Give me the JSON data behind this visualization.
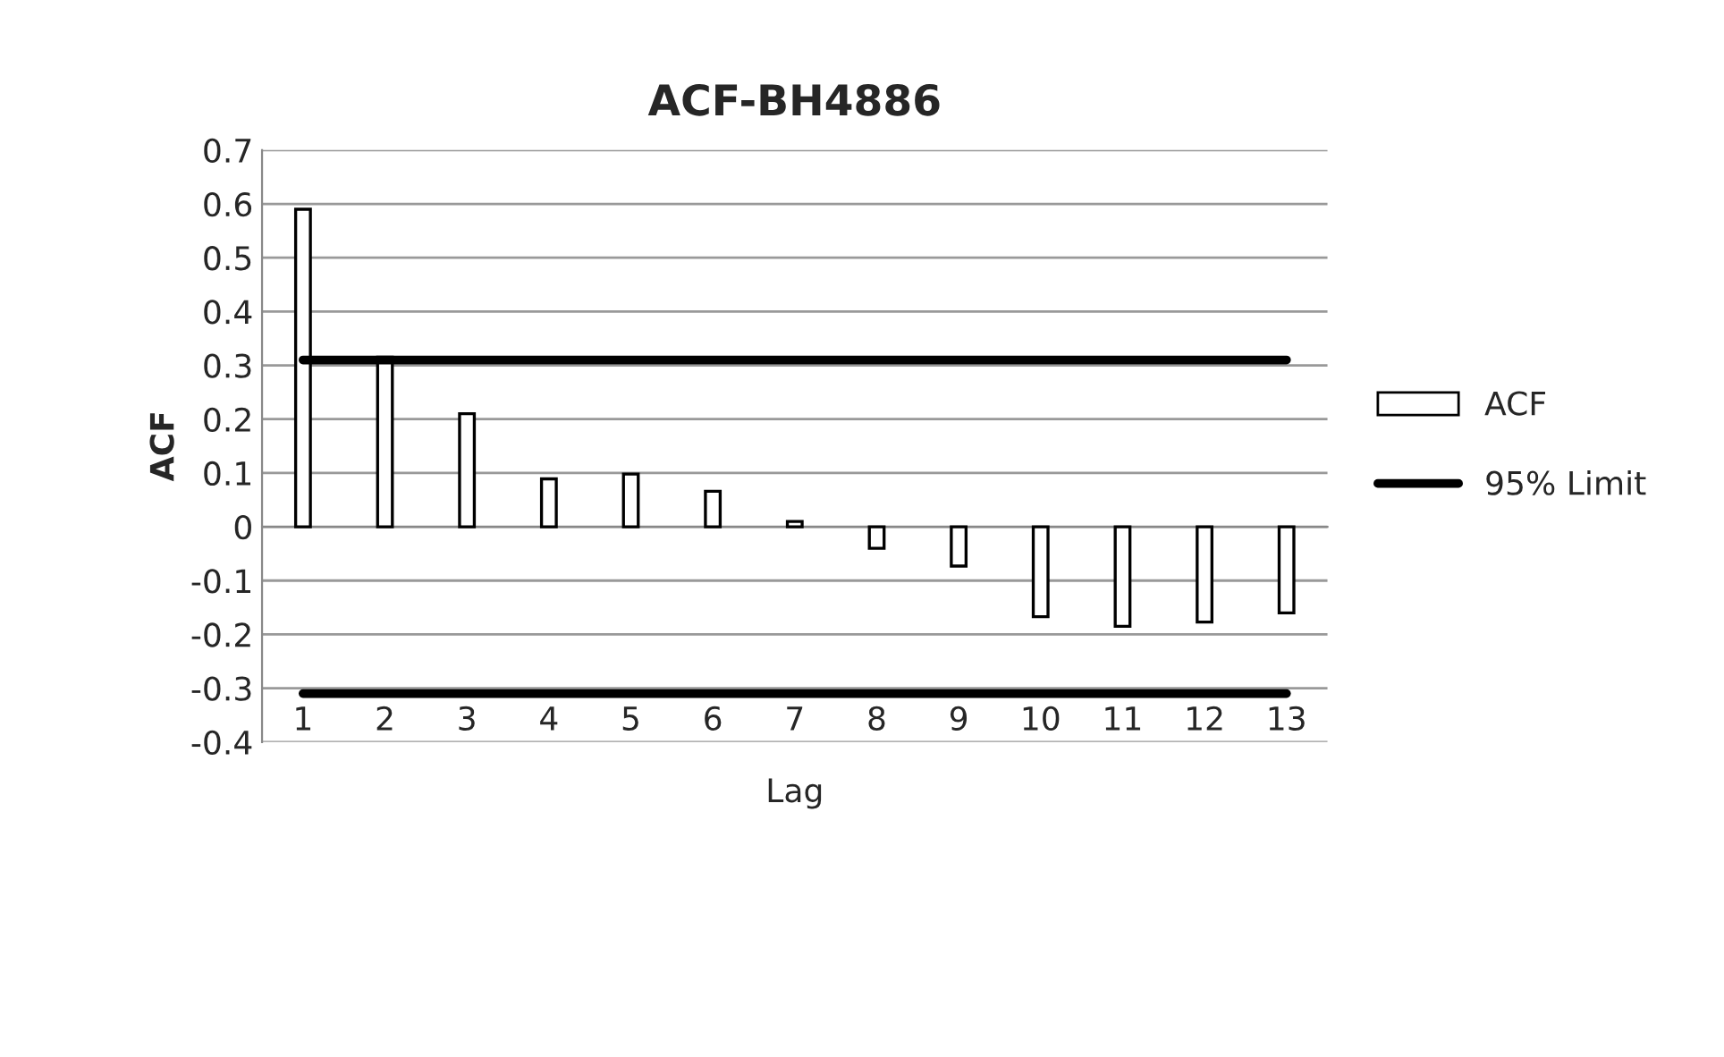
{
  "chart_data": {
    "type": "bar",
    "title": "ACF-BH4886",
    "xlabel": "Lag",
    "ylabel": "ACF",
    "categories": [
      "1",
      "2",
      "3",
      "4",
      "5",
      "6",
      "7",
      "8",
      "9",
      "10",
      "11",
      "12",
      "13"
    ],
    "series": [
      {
        "name": "ACF",
        "color": "#ffffff",
        "values": [
          0.59,
          0.315,
          0.21,
          0.089,
          0.098,
          0.066,
          0.01,
          -0.04,
          -0.073,
          -0.167,
          -0.185,
          -0.177,
          -0.16
        ]
      },
      {
        "name": "95% Limit",
        "type": "line",
        "color": "#000000",
        "values": [
          0.31,
          0.31,
          0.31,
          0.31,
          0.31,
          0.31,
          0.31,
          0.31,
          0.31,
          0.31,
          0.31,
          0.31,
          0.31
        ]
      },
      {
        "type": "line",
        "color": "#000000",
        "values": [
          -0.31,
          -0.31,
          -0.31,
          -0.31,
          -0.31,
          -0.31,
          -0.31,
          -0.31,
          -0.31,
          -0.31,
          -0.31,
          -0.31,
          -0.31
        ]
      }
    ],
    "ylim": [
      -0.4,
      0.7
    ],
    "yticks": [
      -0.4,
      -0.3,
      -0.2,
      -0.1,
      0,
      0.1,
      0.2,
      0.3,
      0.4,
      0.5,
      0.6,
      0.7
    ],
    "grid": "y",
    "legend": "right",
    "marker": "none",
    "line_style": "solid"
  }
}
